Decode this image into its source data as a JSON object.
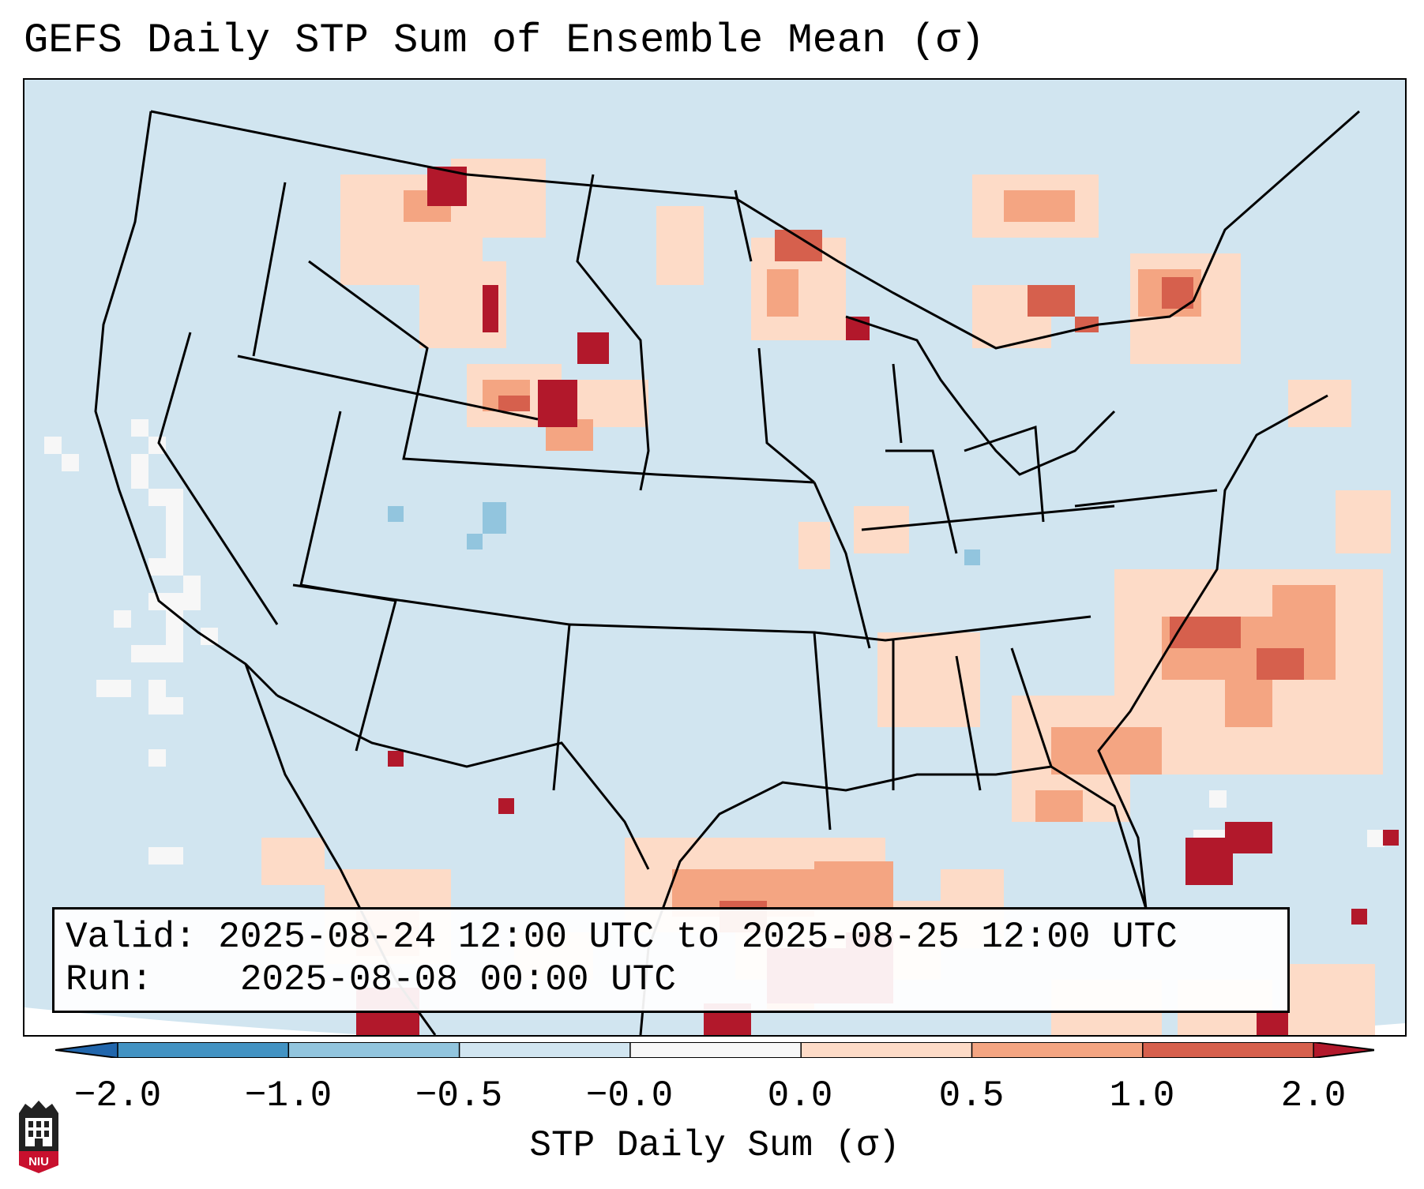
{
  "title": "GEFS Daily STP Sum of Ensemble Mean (σ)",
  "info": {
    "valid_label": "Valid:",
    "valid_value": "2025-08-24 12:00 UTC to 2025-08-25 12:00 UTC",
    "run_label": "Run:",
    "run_value": "2025-08-08 00:00 UTC"
  },
  "colorbar": {
    "label": "STP Daily Sum (σ)",
    "ticks": [
      "−2.0",
      "−1.0",
      "−0.5",
      "−0.0",
      "0.0",
      "0.5",
      "1.0",
      "2.0"
    ],
    "bins": [
      {
        "range": "< -2.0",
        "color": "#2166ac"
      },
      {
        "range": "-2.0 to -1.0",
        "color": "#4393c3"
      },
      {
        "range": "-1.0 to -0.5",
        "color": "#92c5de"
      },
      {
        "range": "-0.5 to -0.0",
        "color": "#d1e5f0"
      },
      {
        "range": "-0.0 to 0.0",
        "color": "#f7f7f7"
      },
      {
        "range": "0.0 to 0.5",
        "color": "#fddbc7"
      },
      {
        "range": "0.5 to 1.0",
        "color": "#f4a582"
      },
      {
        "range": "1.0 to 2.0",
        "color": "#d6604d"
      },
      {
        "range": "> 2.0",
        "color": "#b2182b"
      }
    ]
  },
  "map": {
    "projection": "Lambert conformal, CONUS",
    "background_color": "#d1e5f0",
    "borders": "US state, Canada province, Mexico and coastline outlines",
    "high_value_regions": [
      "Gulf of Mexico off Texas/Louisiana coast",
      "Florida peninsula",
      "Western Atlantic off the Carolinas",
      "Northern Rockies / Montana–Wyoming",
      "Southern Canada north of the Great Lakes"
    ]
  },
  "logo": {
    "text": "NIU"
  }
}
